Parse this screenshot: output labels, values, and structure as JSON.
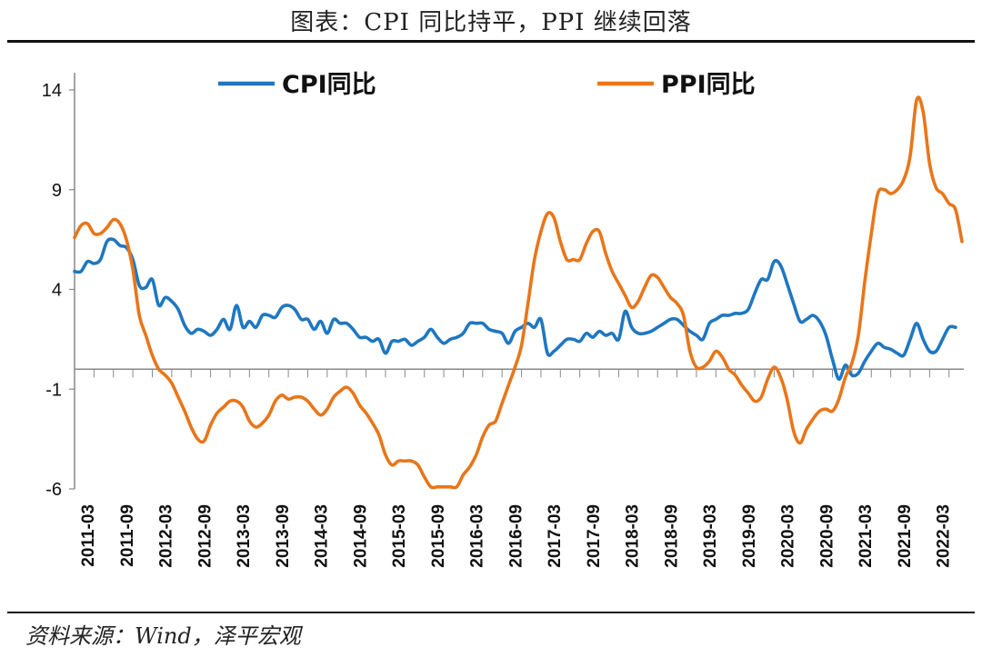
{
  "title": "图表：CPI 同比持平，PPI 继续回落",
  "source": "资料来源：Wind，泽平宏观",
  "chart_data": {
    "type": "line",
    "title": "图表：CPI 同比持平，PPI 继续回落",
    "ylim": [
      -6,
      15
    ],
    "yticks": [
      14,
      9,
      4,
      -1,
      -6
    ],
    "ytick_labels": [
      "14",
      "9",
      "4",
      "-1",
      "-6"
    ],
    "zero_line": 0,
    "legend_placement": "top",
    "x_tick_labels": [
      "2011-03",
      "2011-09",
      "2012-03",
      "2012-09",
      "2013-03",
      "2013-09",
      "2014-03",
      "2014-09",
      "2015-03",
      "2015-09",
      "2016-03",
      "2016-09",
      "2017-03",
      "2017-09",
      "2018-03",
      "2018-09",
      "2019-03",
      "2019-09",
      "2020-03",
      "2020-09",
      "2021-03",
      "2021-09",
      "2022-03"
    ],
    "x_start": "2011-01",
    "x_end": "2022-06",
    "series": [
      {
        "name": "CPI同比",
        "color": "#1f77c0",
        "values": [
          4.9,
          4.9,
          5.4,
          5.3,
          5.5,
          6.4,
          6.5,
          6.2,
          6.1,
          5.5,
          4.2,
          4.1,
          4.5,
          3.2,
          3.6,
          3.4,
          3.0,
          2.2,
          1.8,
          2.0,
          1.9,
          1.7,
          2.0,
          2.5,
          2.0,
          3.2,
          2.1,
          2.4,
          2.1,
          2.7,
          2.7,
          2.6,
          3.1,
          3.2,
          3.0,
          2.5,
          2.5,
          2.0,
          2.4,
          1.8,
          2.5,
          2.3,
          2.3,
          2.0,
          1.6,
          1.6,
          1.4,
          1.5,
          0.8,
          1.4,
          1.4,
          1.5,
          1.2,
          1.4,
          1.6,
          2.0,
          1.6,
          1.3,
          1.5,
          1.6,
          1.8,
          2.3,
          2.3,
          2.3,
          2.0,
          1.9,
          1.8,
          1.3,
          1.9,
          2.1,
          2.3,
          2.1,
          2.5,
          0.8,
          0.9,
          1.2,
          1.5,
          1.5,
          1.4,
          1.8,
          1.6,
          1.9,
          1.7,
          1.8,
          1.5,
          2.9,
          2.1,
          1.8,
          1.8,
          1.9,
          2.1,
          2.3,
          2.5,
          2.5,
          2.2,
          1.9,
          1.7,
          1.5,
          2.3,
          2.5,
          2.7,
          2.7,
          2.8,
          2.8,
          3.0,
          3.8,
          4.5,
          4.5,
          5.4,
          5.2,
          4.3,
          3.3,
          2.4,
          2.5,
          2.7,
          2.4,
          1.7,
          0.5,
          -0.5,
          0.2,
          -0.3,
          -0.2,
          0.4,
          0.9,
          1.3,
          1.1,
          1.0,
          0.8,
          0.7,
          1.5,
          2.3,
          1.5,
          0.9,
          0.9,
          1.5,
          2.1,
          2.1
        ]
      },
      {
        "name": "PPI同比",
        "color": "#e8761a",
        "values": [
          6.6,
          7.2,
          7.3,
          6.8,
          6.8,
          7.1,
          7.5,
          7.3,
          6.5,
          5.0,
          2.7,
          1.7,
          0.7,
          0.0,
          -0.3,
          -0.7,
          -1.4,
          -2.1,
          -2.9,
          -3.5,
          -3.6,
          -2.8,
          -2.2,
          -1.9,
          -1.6,
          -1.6,
          -1.9,
          -2.6,
          -2.9,
          -2.7,
          -2.3,
          -1.6,
          -1.3,
          -1.5,
          -1.4,
          -1.4,
          -1.6,
          -2.0,
          -2.3,
          -2.0,
          -1.4,
          -1.1,
          -0.9,
          -1.2,
          -1.8,
          -2.2,
          -2.7,
          -3.3,
          -4.3,
          -4.8,
          -4.6,
          -4.6,
          -4.6,
          -4.8,
          -5.4,
          -5.9,
          -5.9,
          -5.9,
          -5.9,
          -5.9,
          -5.3,
          -4.9,
          -4.3,
          -3.4,
          -2.8,
          -2.6,
          -1.7,
          -0.8,
          0.1,
          1.2,
          3.3,
          5.5,
          6.9,
          7.8,
          7.6,
          6.4,
          5.5,
          5.5,
          5.5,
          6.3,
          6.9,
          6.9,
          5.8,
          4.9,
          4.3,
          3.7,
          3.1,
          3.4,
          4.1,
          4.7,
          4.6,
          4.1,
          3.6,
          3.3,
          2.7,
          0.9,
          0.1,
          0.1,
          0.4,
          0.9,
          0.6,
          0.0,
          -0.3,
          -0.8,
          -1.2,
          -1.6,
          -1.4,
          -0.5,
          0.1,
          -0.4,
          -1.5,
          -3.1,
          -3.7,
          -3.0,
          -2.5,
          -2.1,
          -2.0,
          -2.1,
          -1.5,
          -0.4,
          0.3,
          1.7,
          4.4,
          6.8,
          8.8,
          9.0,
          8.8,
          9.0,
          9.5,
          10.7,
          13.5,
          12.9,
          10.3,
          9.1,
          8.8,
          8.3,
          8.0,
          6.4
        ]
      }
    ]
  }
}
